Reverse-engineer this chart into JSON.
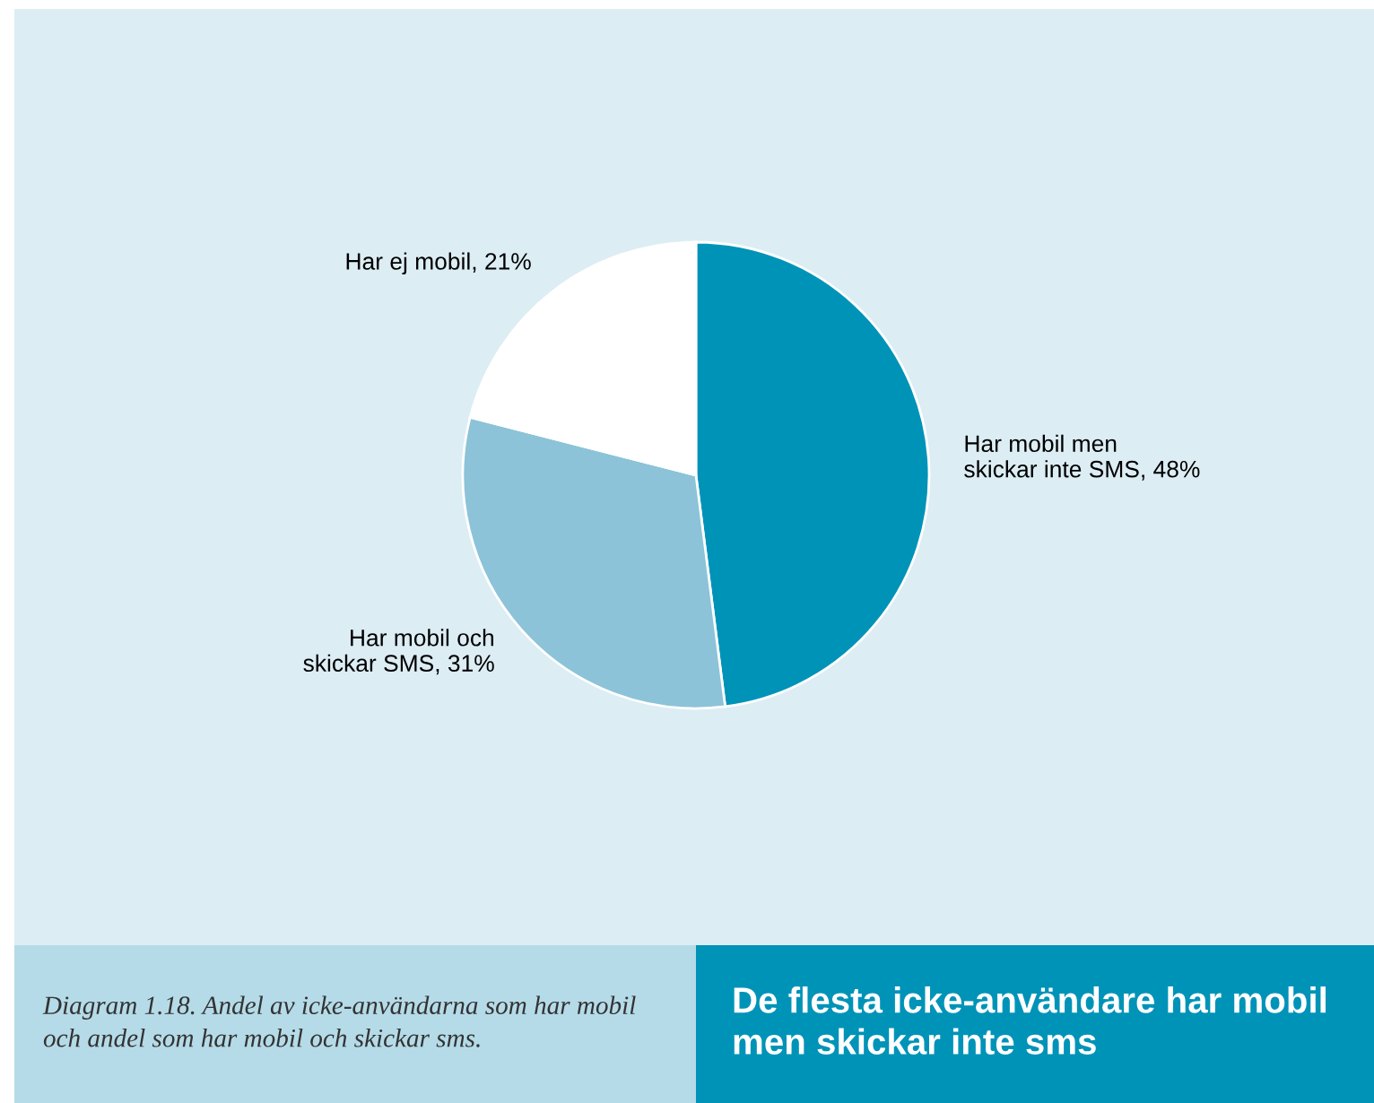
{
  "chart_data": {
    "type": "pie",
    "title": "De flesta icke-användare har mobil\nmen skickar inte sms",
    "categories": [
      "Har mobil men\nskickar inte SMS",
      "Har mobil och\nskickar SMS",
      "Har ej mobil"
    ],
    "values": [
      48,
      31,
      21
    ],
    "value_labels": [
      "48%",
      "31%",
      "21%"
    ],
    "colors": [
      "#0093b8",
      "#8cc3d8",
      "#ffffff"
    ],
    "annotations": [
      "Diagram 1.18. Andel av icke-användarna som har mobil\noch andel som har mobil och skickar sms."
    ]
  }
}
